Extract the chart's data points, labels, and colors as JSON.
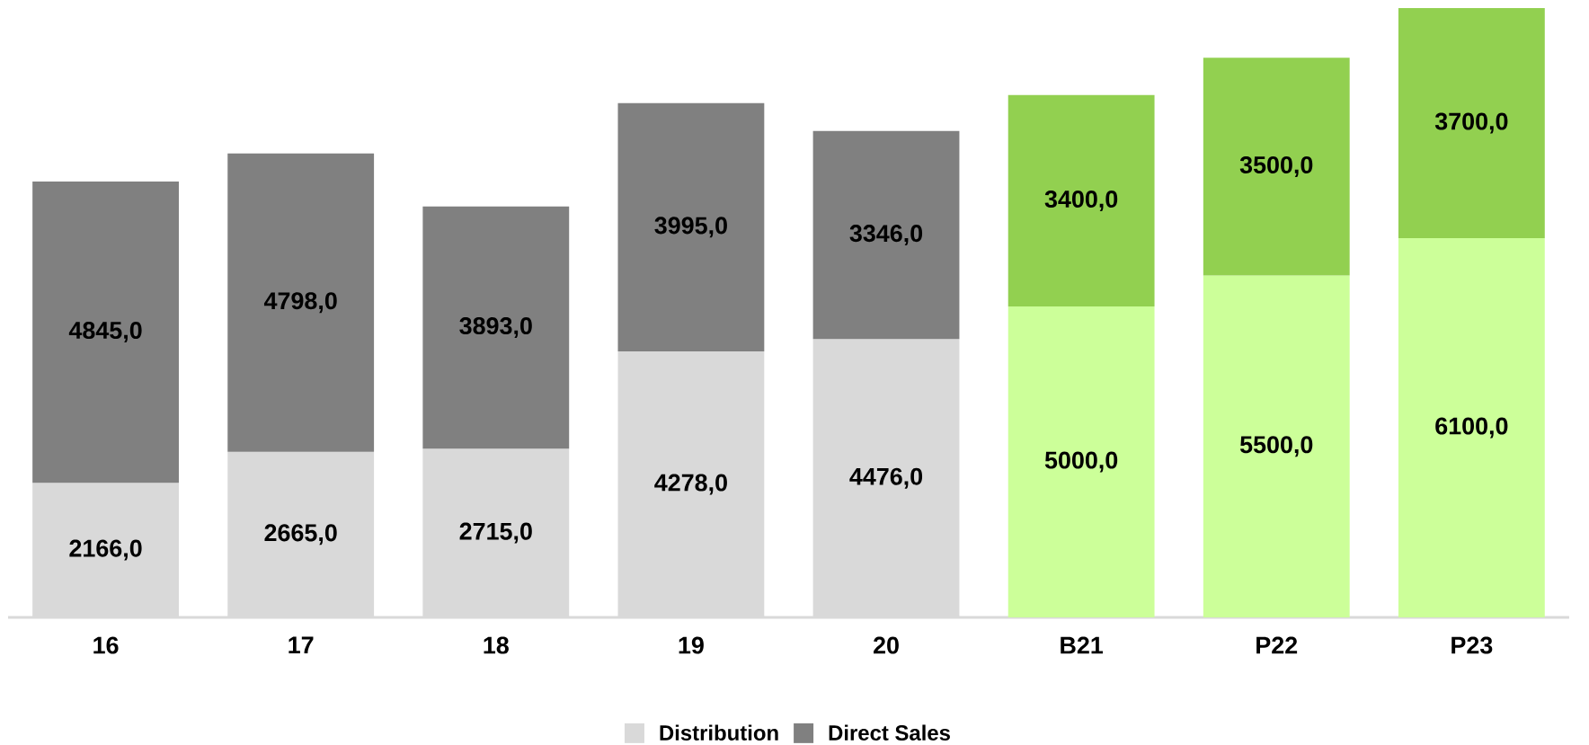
{
  "chart_data": {
    "type": "bar",
    "stacked": true,
    "legend": "bottom",
    "ylim": [
      0,
      9800
    ],
    "categories": [
      "16",
      "17",
      "18",
      "19",
      "20",
      "B21",
      "P22",
      "P23"
    ],
    "series": [
      {
        "name": "Distribution",
        "color": "#d9d9d9",
        "colors": [
          "#d9d9d9",
          "#d9d9d9",
          "#d9d9d9",
          "#d9d9d9",
          "#d9d9d9",
          "#ccff99",
          "#ccff99",
          "#ccff99"
        ],
        "values": [
          2166,
          2665,
          2715,
          4278,
          4476,
          5000,
          5500,
          6100
        ],
        "value_labels": [
          "2166,0",
          "2665,0",
          "2715,0",
          "4278,0",
          "4476,0",
          "5000,0",
          "5500,0",
          "6100,0"
        ]
      },
      {
        "name": "Direct Sales",
        "color": "#808080",
        "colors": [
          "#808080",
          "#808080",
          "#808080",
          "#808080",
          "#808080",
          "#92d050",
          "#92d050",
          "#92d050"
        ],
        "values": [
          4845,
          4798,
          3893,
          3995,
          3346,
          3400,
          3500,
          3700
        ],
        "value_labels": [
          "4845,0",
          "4798,0",
          "3893,0",
          "3995,0",
          "3346,0",
          "3400,0",
          "3500,0",
          "3700,0"
        ]
      }
    ]
  }
}
